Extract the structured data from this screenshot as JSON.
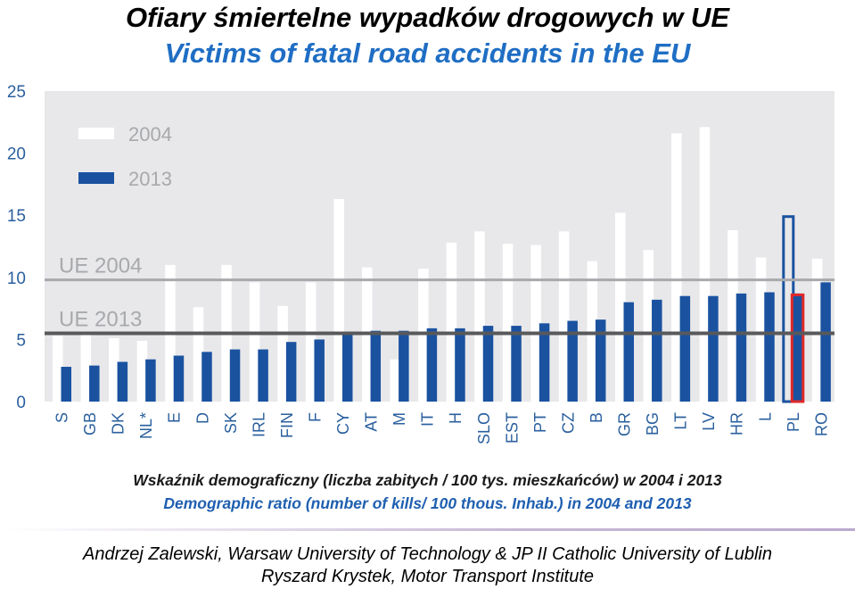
{
  "header": {
    "title_pl": "Ofiary śmiertelne wypadków drogowych w UE",
    "title_en": "Victims of fatal road accidents in the EU"
  },
  "chart_data": {
    "type": "bar",
    "categories": [
      "S",
      "GB",
      "DK",
      "NL*",
      "E",
      "D",
      "SK",
      "IRL",
      "FIN",
      "F",
      "CY",
      "AT",
      "M",
      "IT",
      "H",
      "SLO",
      "EST",
      "PT",
      "CZ",
      "B",
      "GR",
      "BG",
      "LT",
      "LV",
      "HR",
      "L",
      "PL",
      "RO"
    ],
    "series": [
      {
        "name": "2004",
        "color": "#ffffff",
        "values": [
          5.3,
          5.6,
          5.1,
          4.9,
          11.0,
          7.6,
          11.0,
          9.6,
          7.7,
          9.6,
          16.3,
          10.8,
          3.4,
          10.7,
          12.8,
          13.7,
          12.7,
          12.6,
          13.7,
          11.3,
          15.2,
          12.2,
          21.6,
          22.1,
          13.8,
          11.6,
          15.0,
          11.5
        ]
      },
      {
        "name": "2013",
        "color": "#1a52a0",
        "values": [
          2.8,
          2.9,
          3.2,
          3.4,
          3.7,
          4.0,
          4.2,
          4.2,
          4.8,
          5.0,
          5.6,
          5.7,
          5.7,
          5.9,
          5.9,
          6.1,
          6.1,
          6.3,
          6.5,
          6.6,
          8.0,
          8.2,
          8.5,
          8.5,
          8.7,
          8.8,
          8.7,
          9.6
        ]
      }
    ],
    "reference_lines": [
      {
        "label": "UE 2004",
        "value": 9.8
      },
      {
        "label": "UE 2013",
        "value": 5.5
      }
    ],
    "highlight_category": "PL",
    "yticks": [
      "0",
      "5",
      "10",
      "15",
      "20",
      "25"
    ],
    "ylim": [
      0,
      25
    ],
    "legend_placement": "top-left",
    "plot_background": "#e8e8ea",
    "highlight_colors": {
      "series_2004": "#1a52a0",
      "series_2013": "#e02828"
    }
  },
  "caption": {
    "pl": "Wskaźnik demograficzny (liczba zabitych / 100 tys. mieszkańców) w 2004 i 2013",
    "en": "Demographic ratio (number of kills/ 100 thous. Inhab.) in 2004 and 2013"
  },
  "authors": {
    "line1": "Andrzej Zalewski, Warsaw University of Technology & JP II Catholic University of Lublin",
    "line2": "Ryszard Krystek, Motor Transport Institute"
  }
}
